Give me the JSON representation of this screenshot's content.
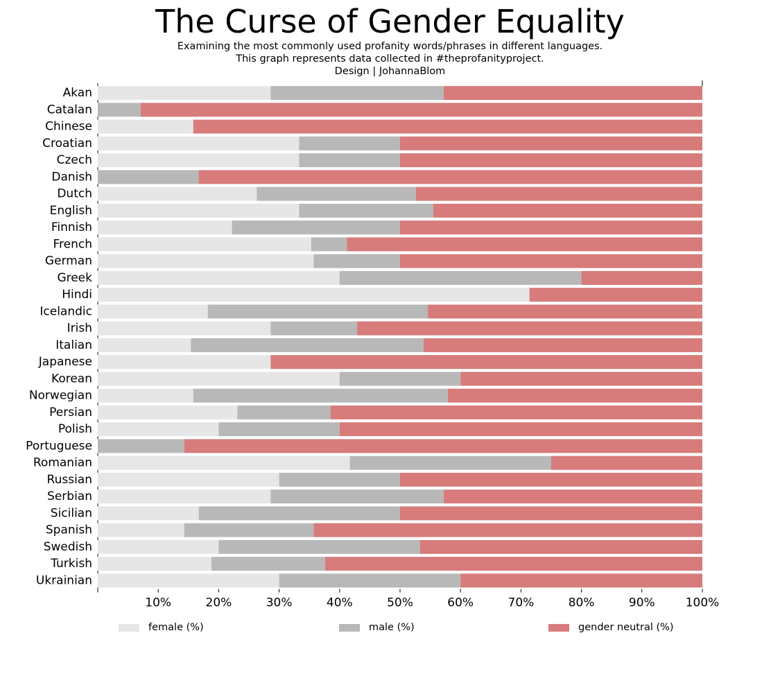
{
  "header": {
    "title": "The Curse of Gender Equality",
    "subtitle_lines": [
      "Examining the most commonly used profanity words/phrases in different languages.",
      "This graph represents data collected in #theprofanityproject.",
      "Design | JohannaBlom"
    ]
  },
  "colors": {
    "female": "#e6e6e6",
    "male": "#b8b8b8",
    "neutral": "#d77b7b",
    "axis": "#000000"
  },
  "chart_data": {
    "type": "bar",
    "orientation": "horizontal",
    "stacked": true,
    "title": "The Curse of Gender Equality",
    "categories": [
      "Akan",
      "Catalan",
      "Chinese",
      "Croatian",
      "Czech",
      "Danish",
      "Dutch",
      "English",
      "Finnish",
      "French",
      "German",
      "Greek",
      "Hindi",
      "Icelandic",
      "Irish",
      "Italian",
      "Japanese",
      "Korean",
      "Norwegian",
      "Persian",
      "Polish",
      "Portuguese",
      "Romanian",
      "Russian",
      "Serbian",
      "Sicilian",
      "Spanish",
      "Swedish",
      "Turkish",
      "Ukrainian"
    ],
    "series": [
      {
        "name": "female (%)",
        "values": [
          28.6,
          0,
          15.8,
          33.3,
          33.3,
          0,
          26.3,
          33.3,
          22.2,
          35.3,
          35.7,
          40,
          71.4,
          18.2,
          28.6,
          15.4,
          28.6,
          40,
          15.8,
          23.1,
          20,
          0,
          41.7,
          30,
          28.6,
          16.7,
          14.3,
          20,
          18.8,
          30
        ]
      },
      {
        "name": "male (%)",
        "values": [
          28.6,
          7.1,
          0,
          16.7,
          16.7,
          16.7,
          26.3,
          22.2,
          27.8,
          5.9,
          14.3,
          40,
          0,
          36.4,
          14.3,
          38.5,
          0,
          20,
          42.1,
          15.4,
          20,
          14.3,
          33.3,
          20,
          28.6,
          33.3,
          21.4,
          33.3,
          18.8,
          30
        ]
      },
      {
        "name": "gender neutral (%)",
        "values": [
          42.8,
          92.9,
          84.2,
          50,
          50,
          83.3,
          47.4,
          44.5,
          50,
          58.8,
          50,
          20,
          28.6,
          45.4,
          57.1,
          46.1,
          71.4,
          40,
          42.1,
          61.5,
          60,
          85.7,
          25,
          50,
          42.8,
          50,
          64.3,
          46.7,
          62.4,
          40
        ]
      }
    ],
    "x_ticks": [
      "10%",
      "20%",
      "30%",
      "40%",
      "50%",
      "60%",
      "70%",
      "80%",
      "90%",
      "100%"
    ],
    "xlim": [
      0,
      100
    ],
    "grid": false,
    "legend_position": "bottom"
  },
  "legend": {
    "items": [
      "female (%)",
      "male (%)",
      "gender neutral (%)"
    ]
  }
}
